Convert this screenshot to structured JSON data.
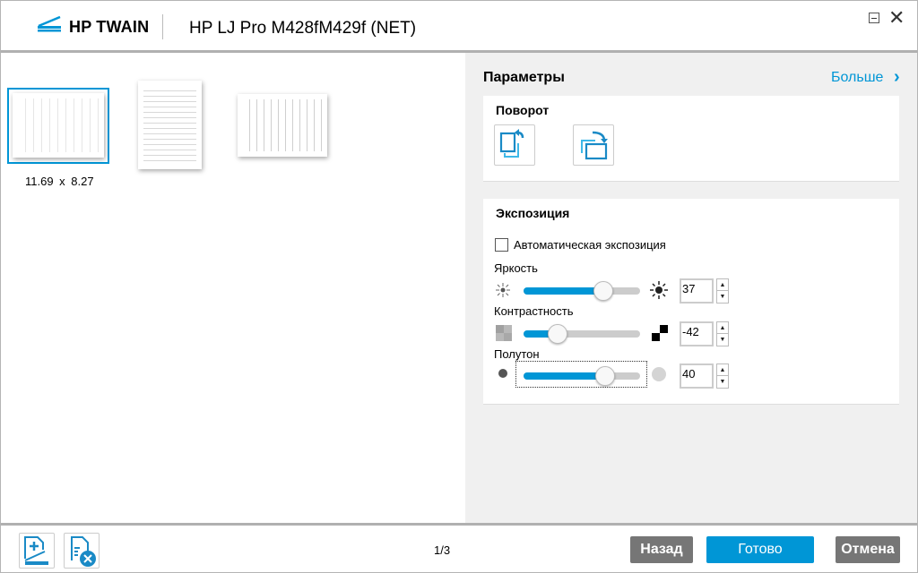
{
  "header": {
    "brand": "HP TWAIN",
    "title": "HP LJ Pro M428fM429f (NET)",
    "logo_icon": "scanner-icon"
  },
  "thumbnails": {
    "selected_dims": "11.69 x 8.27",
    "count": 3,
    "selected_index": 0
  },
  "params": {
    "title": "Параметры",
    "more_label": "Больше",
    "rotation": {
      "title": "Поворот"
    },
    "exposure": {
      "title": "Экспозиция",
      "auto_label": "Автоматическая экспозиция",
      "auto_checked": false,
      "brightness": {
        "label": "Яркость",
        "value": "37"
      },
      "contrast": {
        "label": "Контрастность",
        "value": "-42"
      },
      "halftone": {
        "label": "Полутон",
        "value": "40"
      },
      "range": [
        -100,
        100
      ]
    }
  },
  "footer": {
    "page": "1/3",
    "back_label": "Назад",
    "done_label": "Готово",
    "cancel_label": "Отмена"
  },
  "colors": {
    "accent": "#0096d6",
    "button_gray": "#767676"
  }
}
